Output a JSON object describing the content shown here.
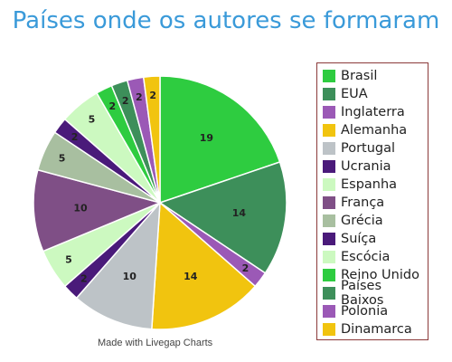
{
  "chart_data": {
    "type": "pie",
    "title": "Países onde os autores se formaram",
    "legend_position": "right",
    "slices": [
      {
        "label": "Brasil",
        "value": 19,
        "color": "#2ecc40"
      },
      {
        "label": "EUA",
        "value": 14,
        "color": "#3d8f5a"
      },
      {
        "label": "Inglaterra",
        "value": 2,
        "color": "#9b59b6"
      },
      {
        "label": "Alemanha",
        "value": 14,
        "color": "#f1c40f"
      },
      {
        "label": "Portugal",
        "value": 10,
        "color": "#bdc3c7"
      },
      {
        "label": "Ucrania",
        "value": 2,
        "color": "#4a1a7a"
      },
      {
        "label": "Espanha",
        "value": 5,
        "color": "#ccf9c0"
      },
      {
        "label": "França",
        "value": 10,
        "color": "#7f4f86"
      },
      {
        "label": "Grécia",
        "value": 5,
        "color": "#a8bfa0"
      },
      {
        "label": "Suíça",
        "value": 2,
        "color": "#4a1a7a"
      },
      {
        "label": "Escócia",
        "value": 5,
        "color": "#ccf9c0"
      },
      {
        "label": "Reino Unido",
        "value": 2,
        "color": "#2ecc40"
      },
      {
        "label": "Países Baixos",
        "value": 2,
        "color": "#3d8f5a"
      },
      {
        "label": "Polonia",
        "value": 2,
        "color": "#9b59b6"
      },
      {
        "label": "Dinamarca",
        "value": 2,
        "color": "#f1c40f"
      }
    ]
  },
  "watermark": "Made with Livegap Charts"
}
